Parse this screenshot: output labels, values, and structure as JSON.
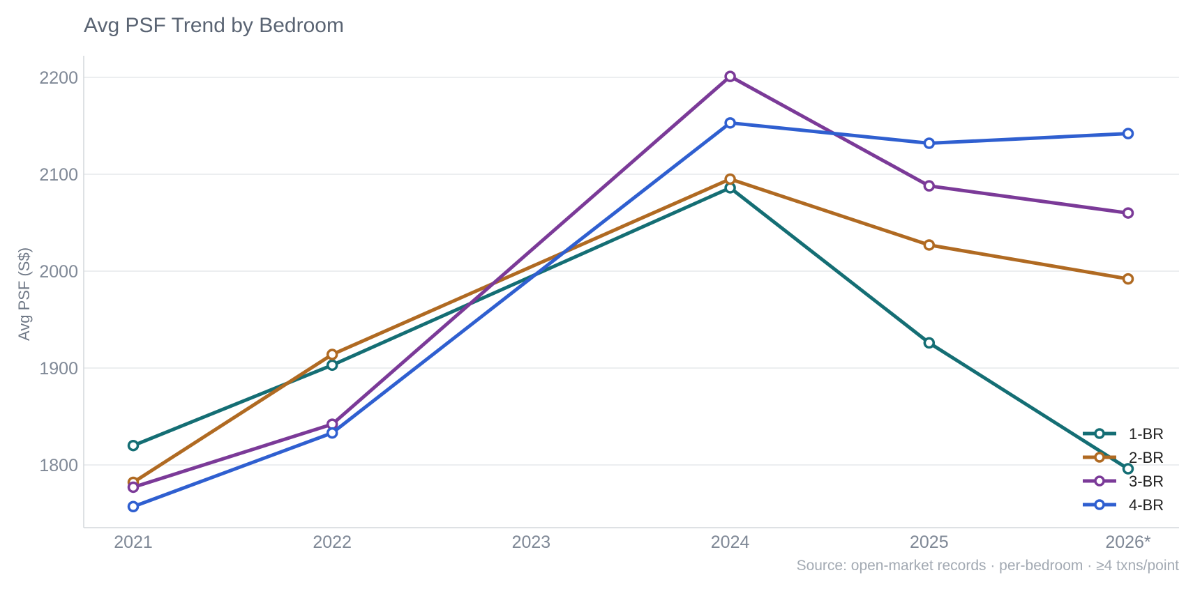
{
  "chart_data": {
    "type": "line",
    "title": "Avg PSF Trend by Bedroom",
    "xlabel": "",
    "ylabel": "Avg PSF (S$)",
    "categories": [
      "2021",
      "2022",
      "2023",
      "2024",
      "2025",
      "2026*"
    ],
    "ylim": [
      1735,
      2225
    ],
    "y_ticks": [
      1800,
      1900,
      2000,
      2100,
      2200
    ],
    "grid": "horizontal",
    "legend_position": "bottom-right",
    "series": [
      {
        "name": "1-BR",
        "color": "#146e74",
        "values": [
          1820,
          1903,
          null,
          2086,
          1926,
          1796
        ]
      },
      {
        "name": "2-BR",
        "color": "#b06a22",
        "values": [
          1782,
          1914,
          null,
          2095,
          2027,
          1992
        ]
      },
      {
        "name": "3-BR",
        "color": "#7b3a98",
        "values": [
          1777,
          1842,
          null,
          2201,
          2088,
          2060
        ]
      },
      {
        "name": "4-BR",
        "color": "#2f5fd0",
        "values": [
          1757,
          1833,
          null,
          2153,
          2132,
          2142
        ]
      }
    ],
    "source_note": "Source: open-market records · per-bedroom · ≥4 txns/point"
  }
}
